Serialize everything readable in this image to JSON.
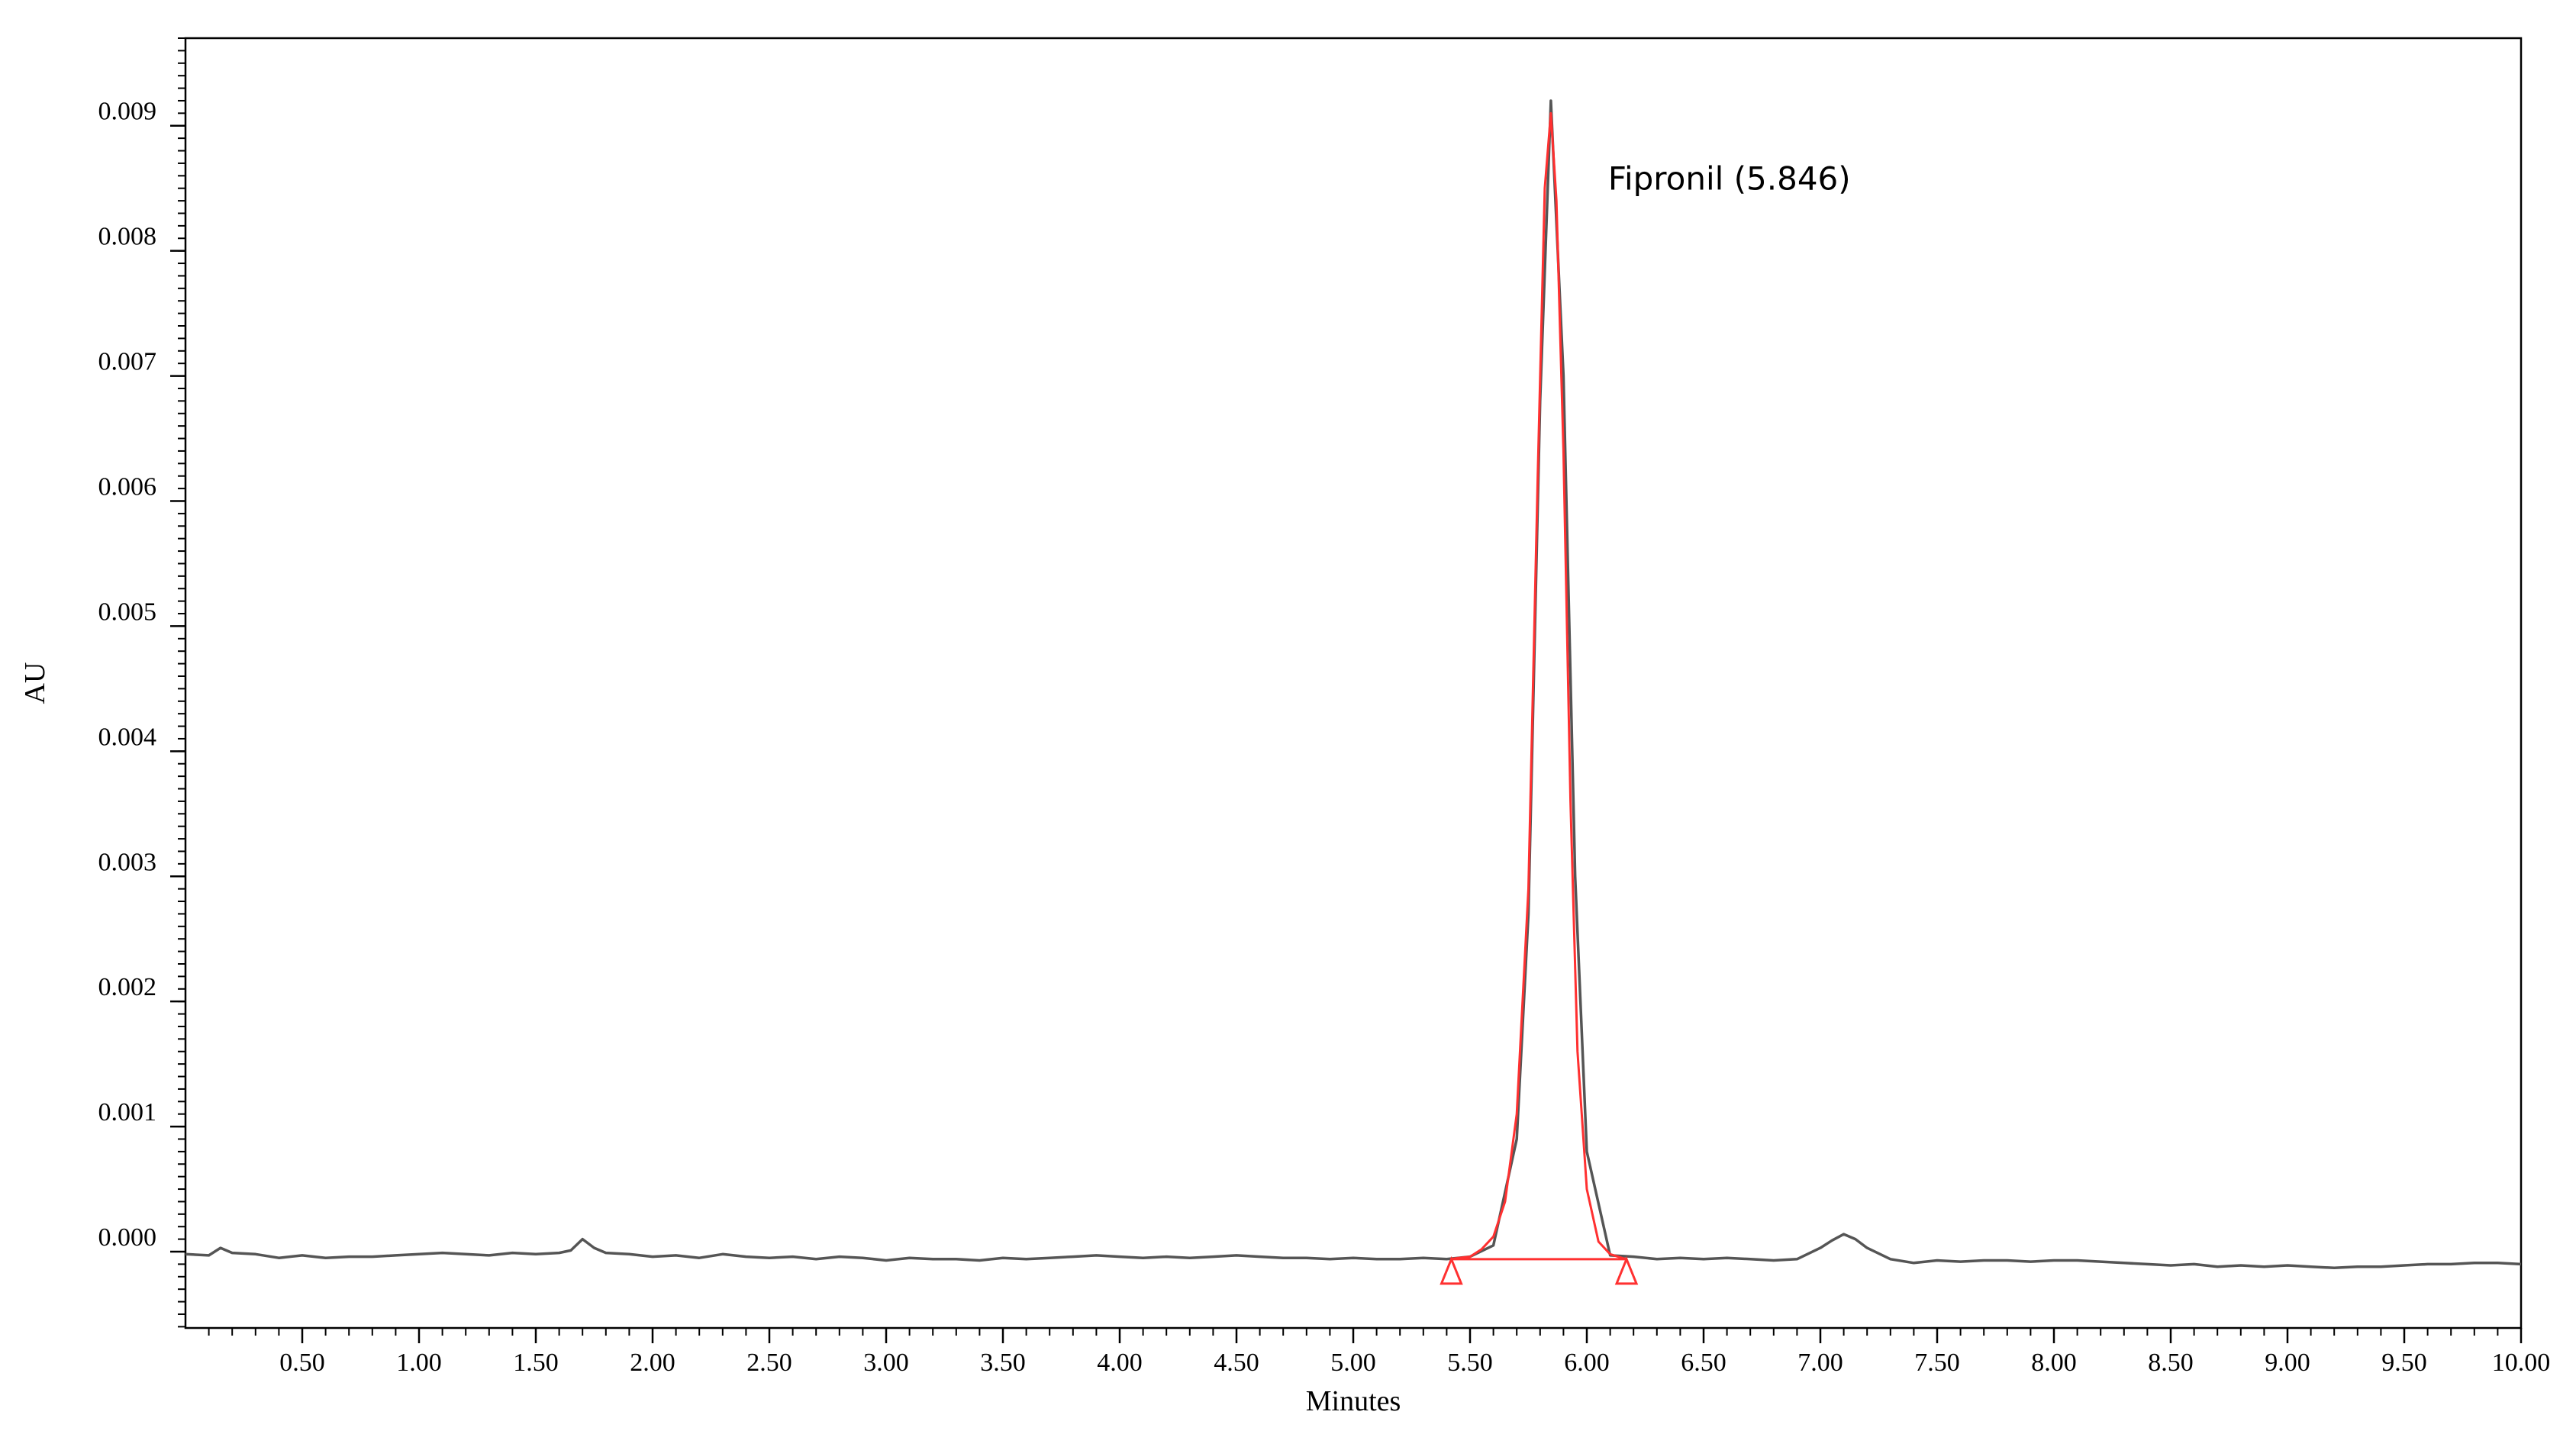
{
  "chart_data": {
    "type": "line",
    "xlabel": "Minutes",
    "ylabel": "AU",
    "xlim": [
      0.0,
      10.0
    ],
    "ylim": [
      -0.00061,
      0.0097
    ],
    "x_ticks": [
      0.5,
      1.0,
      1.5,
      2.0,
      2.5,
      3.0,
      3.5,
      4.0,
      4.5,
      5.0,
      5.5,
      6.0,
      6.5,
      7.0,
      7.5,
      8.0,
      8.5,
      9.0,
      9.5,
      10.0
    ],
    "x_tick_labels": [
      "0.50",
      "1.00",
      "1.50",
      "2.00",
      "2.50",
      "3.00",
      "3.50",
      "4.00",
      "4.50",
      "5.00",
      "5.50",
      "6.00",
      "6.50",
      "7.00",
      "7.50",
      "8.00",
      "8.50",
      "9.00",
      "9.50",
      "10.00"
    ],
    "y_ticks": [
      0.0,
      0.001,
      0.002,
      0.003,
      0.004,
      0.005,
      0.006,
      0.007,
      0.008,
      0.009
    ],
    "y_tick_labels": [
      "0.000",
      "0.001",
      "0.002",
      "0.003",
      "0.004",
      "0.005",
      "0.006",
      "0.007",
      "0.008",
      "0.009"
    ],
    "grid": false,
    "series": [
      {
        "color": "#555555",
        "x": [
          0.0,
          0.1,
          0.15,
          0.2,
          0.3,
          0.4,
          0.5,
          0.6,
          0.7,
          0.8,
          0.9,
          1.0,
          1.1,
          1.2,
          1.3,
          1.4,
          1.5,
          1.6,
          1.65,
          1.7,
          1.75,
          1.8,
          1.9,
          2.0,
          2.1,
          2.2,
          2.3,
          2.4,
          2.5,
          2.6,
          2.7,
          2.8,
          2.9,
          3.0,
          3.1,
          3.2,
          3.3,
          3.4,
          3.5,
          3.6,
          3.7,
          3.8,
          3.9,
          4.0,
          4.1,
          4.2,
          4.3,
          4.4,
          4.5,
          4.6,
          4.7,
          4.8,
          4.9,
          5.0,
          5.1,
          5.2,
          5.3,
          5.4,
          5.5,
          5.6,
          5.7,
          5.75,
          5.8,
          5.846,
          5.9,
          5.95,
          6.0,
          6.1,
          6.2,
          6.3,
          6.4,
          6.5,
          6.6,
          6.7,
          6.8,
          6.9,
          7.0,
          7.05,
          7.1,
          7.15,
          7.2,
          7.3,
          7.4,
          7.5,
          7.6,
          7.7,
          7.8,
          7.9,
          8.0,
          8.1,
          8.2,
          8.3,
          8.4,
          8.5,
          8.6,
          8.7,
          8.8,
          8.9,
          9.0,
          9.1,
          9.2,
          9.3,
          9.4,
          9.5,
          9.6,
          9.7,
          9.8,
          9.9,
          10.0
        ],
        "y": [
          -2e-05,
          -3e-05,
          3e-05,
          -1e-05,
          -2e-05,
          -5e-05,
          -3e-05,
          -5e-05,
          -4e-05,
          -4e-05,
          -3e-05,
          -2e-05,
          -1e-05,
          -2e-05,
          -3e-05,
          -1e-05,
          -2e-05,
          -1e-05,
          1e-05,
          0.0001,
          3e-05,
          -1e-05,
          -2e-05,
          -4e-05,
          -3e-05,
          -5e-05,
          -2e-05,
          -4e-05,
          -5e-05,
          -4e-05,
          -6e-05,
          -4e-05,
          -5e-05,
          -7e-05,
          -5e-05,
          -6e-05,
          -6e-05,
          -7e-05,
          -5e-05,
          -6e-05,
          -5e-05,
          -4e-05,
          -3e-05,
          -4e-05,
          -5e-05,
          -4e-05,
          -5e-05,
          -4e-05,
          -3e-05,
          -4e-05,
          -5e-05,
          -5e-05,
          -6e-05,
          -5e-05,
          -6e-05,
          -6e-05,
          -5e-05,
          -6e-05,
          -4e-05,
          5e-05,
          0.0009,
          0.0027,
          0.0068,
          0.0092,
          0.007,
          0.003,
          0.0008,
          -3e-05,
          -4e-05,
          -6e-05,
          -5e-05,
          -6e-05,
          -5e-05,
          -6e-05,
          -7e-05,
          -6e-05,
          3e-05,
          9e-05,
          0.00014,
          0.0001,
          3e-05,
          -6e-05,
          -9e-05,
          -7e-05,
          -8e-05,
          -7e-05,
          -7e-05,
          -8e-05,
          -7e-05,
          -7e-05,
          -8e-05,
          -9e-05,
          -0.0001,
          -0.00011,
          -0.0001,
          -0.00012,
          -0.00011,
          -0.00012,
          -0.00011,
          -0.00012,
          -0.00013,
          -0.00012,
          -0.00012,
          -0.00011,
          -0.0001,
          -0.0001,
          -9e-05,
          -9e-05,
          -0.0001
        ]
      },
      {
        "color": "#ff3030",
        "x": [
          5.42,
          5.45,
          5.5,
          5.55,
          5.6,
          5.65,
          5.7,
          5.75,
          5.79,
          5.82,
          5.846,
          5.87,
          5.9,
          5.93,
          5.96,
          6.0,
          6.05,
          6.1,
          6.15,
          6.17
        ],
        "y": [
          -6e-05,
          -5e-05,
          -4e-05,
          2e-05,
          0.00012,
          0.0004,
          0.0011,
          0.0029,
          0.0062,
          0.0085,
          0.0091,
          0.0084,
          0.0064,
          0.0036,
          0.0016,
          0.0005,
          8e-05,
          -2e-05,
          -5e-05,
          -6e-05
        ]
      }
    ],
    "baseline": {
      "color": "#ff3030",
      "x": [
        5.42,
        6.17
      ],
      "y": [
        -6e-05,
        -6e-05
      ]
    },
    "integration_markers": [
      {
        "x": 5.42,
        "y": -6e-05
      },
      {
        "x": 6.17,
        "y": -6e-05
      }
    ],
    "annotations": [
      {
        "text": "Fipronil (5.846)",
        "x": 5.846,
        "y": 0.0091
      }
    ]
  }
}
